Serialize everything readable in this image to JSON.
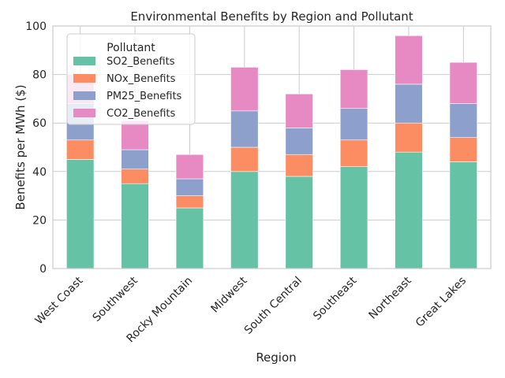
{
  "chart_data": {
    "type": "bar",
    "stacked": true,
    "title": "Environmental Benefits by Region and Pollutant",
    "xlabel": "Region",
    "ylabel": "Benefits per MWh ($)",
    "ylim": [
      0,
      100
    ],
    "yticks": [
      0,
      20,
      40,
      60,
      80,
      100
    ],
    "grid": true,
    "categories": [
      "West Coast",
      "Southwest",
      "Rocky Mountain",
      "Midwest",
      "South Central",
      "Southeast",
      "Northeast",
      "Great Lakes"
    ],
    "series": [
      {
        "name": "SO2_Benefits",
        "color": "#66c2a5",
        "values": [
          45,
          35,
          25,
          40,
          38,
          42,
          48,
          44
        ]
      },
      {
        "name": "NOx_Benefits",
        "color": "#fc8d62",
        "values": [
          8,
          6,
          5,
          10,
          9,
          11,
          12,
          10
        ]
      },
      {
        "name": "PM25_Benefits",
        "color": "#8da0cb",
        "values": [
          15,
          8,
          7,
          15,
          11,
          13,
          16,
          14
        ]
      },
      {
        "name": "CO2_Benefits",
        "color": "#e78ac3",
        "values": [
          12,
          12,
          10,
          18,
          14,
          16,
          20,
          17
        ]
      }
    ],
    "legend": {
      "title": "Pollutant",
      "position": "top-left"
    }
  }
}
